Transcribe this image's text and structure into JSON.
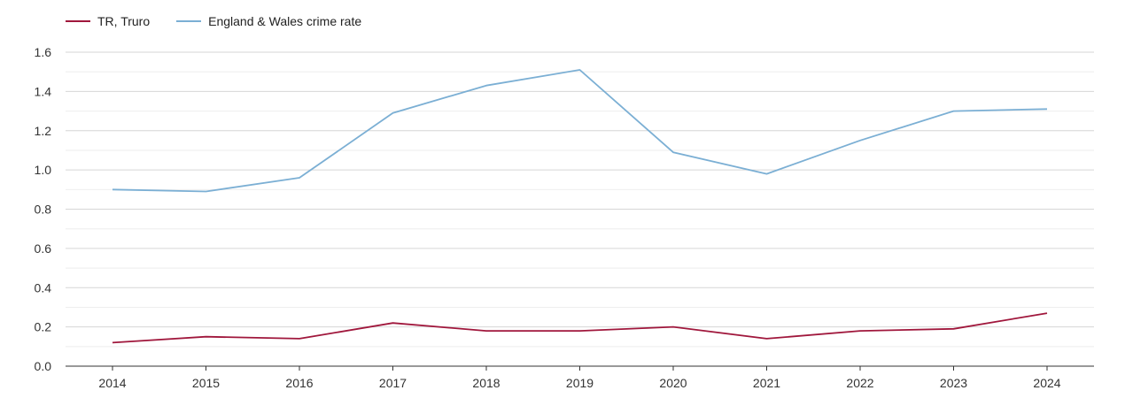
{
  "chart_data": {
    "type": "line",
    "title": "",
    "xlabel": "",
    "ylabel": "",
    "categories": [
      "2014",
      "2015",
      "2016",
      "2017",
      "2018",
      "2019",
      "2020",
      "2021",
      "2022",
      "2023",
      "2024"
    ],
    "ylim": [
      0,
      1.6
    ],
    "yticks": [
      "0.0",
      "0.2",
      "0.4",
      "0.6",
      "0.8",
      "1.0",
      "1.2",
      "1.4",
      "1.6"
    ],
    "grid": true,
    "legend_position": "top-left",
    "series": [
      {
        "name": "TR, Truro",
        "color": "#a0173c",
        "values": [
          0.12,
          0.15,
          0.14,
          0.22,
          0.18,
          0.18,
          0.2,
          0.14,
          0.18,
          0.19,
          0.27
        ]
      },
      {
        "name": "England & Wales crime rate",
        "color": "#7bafd4",
        "values": [
          0.9,
          0.89,
          0.96,
          1.29,
          1.43,
          1.51,
          1.09,
          0.98,
          1.15,
          1.3,
          1.31
        ]
      }
    ]
  }
}
